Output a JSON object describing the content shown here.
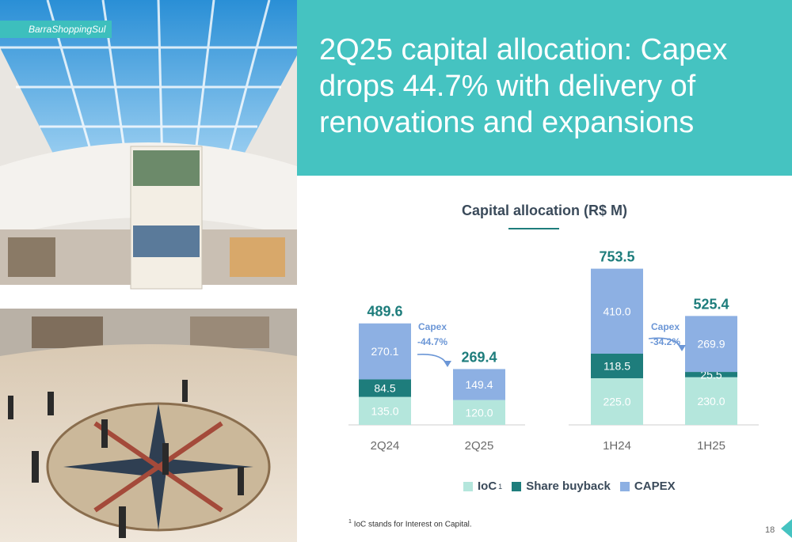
{
  "photo": {
    "caption": "BarraShoppingSul"
  },
  "headline": "2Q25 capital allocation: Capex drops 44.7% with delivery of renovations and expansions",
  "chart_data": {
    "type": "bar",
    "stacked": true,
    "title": "Capital allocation (R$ M)",
    "groups": [
      {
        "categories": [
          "2Q24",
          "2Q25"
        ],
        "totals": [
          "489.6",
          "269.4"
        ],
        "change": {
          "label": "Capex",
          "value": "-44.7%"
        },
        "series": {
          "ioc": [
            135.0,
            120.0
          ],
          "buyback": [
            84.5,
            0
          ],
          "capex": [
            270.1,
            149.4
          ]
        },
        "value_labels": {
          "ioc": [
            "135.0",
            "120.0"
          ],
          "buyback": [
            "84.5",
            ""
          ],
          "capex": [
            "270.1",
            "149.4"
          ]
        }
      },
      {
        "categories": [
          "1H24",
          "1H25"
        ],
        "totals": [
          "753.5",
          "525.4"
        ],
        "change": {
          "label": "Capex",
          "value": "-34.2%"
        },
        "series": {
          "ioc": [
            225.0,
            230.0
          ],
          "buyback": [
            118.5,
            25.5
          ],
          "capex": [
            410.0,
            269.9
          ]
        },
        "value_labels": {
          "ioc": [
            "225.0",
            "230.0"
          ],
          "buyback": [
            "118.5",
            "25.5"
          ],
          "capex": [
            "410.0",
            "269.9"
          ]
        }
      }
    ],
    "legend": {
      "placement": "bottom",
      "ioc": "IoC",
      "ioc_note": "1",
      "buyback": "Share buyback",
      "capex": "CAPEX"
    },
    "colors": {
      "ioc": "#b4e6dc",
      "buyback": "#1e7d7c",
      "capex": "#8db0e3",
      "total": "#1e7d7c",
      "change": "#6b96d6"
    }
  },
  "footnote": {
    "marker": "1",
    "text": "IoC stands for Interest on Capital."
  },
  "page_number": "18"
}
